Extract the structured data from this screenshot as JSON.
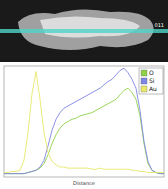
{
  "image": {
    "label": "011"
  },
  "chart_data": {
    "type": "line",
    "xlabel": "Distance",
    "x": [
      0,
      0.025,
      0.05,
      0.075,
      0.1,
      0.125,
      0.15,
      0.175,
      0.2,
      0.225,
      0.25,
      0.275,
      0.3,
      0.325,
      0.35,
      0.375,
      0.4,
      0.425,
      0.45,
      0.475,
      0.5,
      0.525,
      0.55,
      0.575,
      0.6,
      0.625,
      0.65,
      0.675,
      0.7,
      0.725,
      0.75,
      0.775,
      0.8,
      0.825,
      0.85,
      0.875,
      0.9,
      0.925,
      0.95,
      0.975,
      1
    ],
    "series": [
      {
        "name": "O",
        "color": "#8fd24a",
        "values": [
          3,
          3,
          3,
          3,
          3,
          3,
          4,
          5,
          6,
          8,
          12,
          20,
          30,
          38,
          44,
          48,
          50,
          52,
          53,
          55,
          56,
          57,
          58,
          60,
          62,
          64,
          66,
          68,
          70,
          74,
          78,
          80,
          76,
          70,
          55,
          30,
          12,
          6,
          4,
          3,
          3
        ]
      },
      {
        "name": "Si",
        "color": "#7f86e6",
        "values": [
          3,
          3,
          3,
          3,
          3,
          3,
          4,
          5,
          6,
          9,
          15,
          28,
          42,
          52,
          58,
          62,
          64,
          66,
          68,
          70,
          72,
          74,
          76,
          78,
          80,
          83,
          86,
          88,
          92,
          96,
          98,
          94,
          88,
          80,
          60,
          32,
          14,
          6,
          4,
          3,
          3
        ]
      },
      {
        "name": "Au",
        "color": "#e8e86a",
        "values": [
          4,
          4,
          5,
          5,
          6,
          15,
          40,
          75,
          95,
          70,
          40,
          22,
          14,
          11,
          9,
          9,
          8,
          8,
          8,
          8,
          8,
          8,
          7,
          7,
          8,
          7,
          7,
          7,
          7,
          7,
          7,
          7,
          6,
          6,
          5,
          5,
          4,
          4,
          4,
          4,
          4
        ]
      }
    ],
    "xlim": [
      0,
      1
    ],
    "ylim": [
      0,
      100
    ],
    "tick_labels": false,
    "legend": "upper right"
  }
}
